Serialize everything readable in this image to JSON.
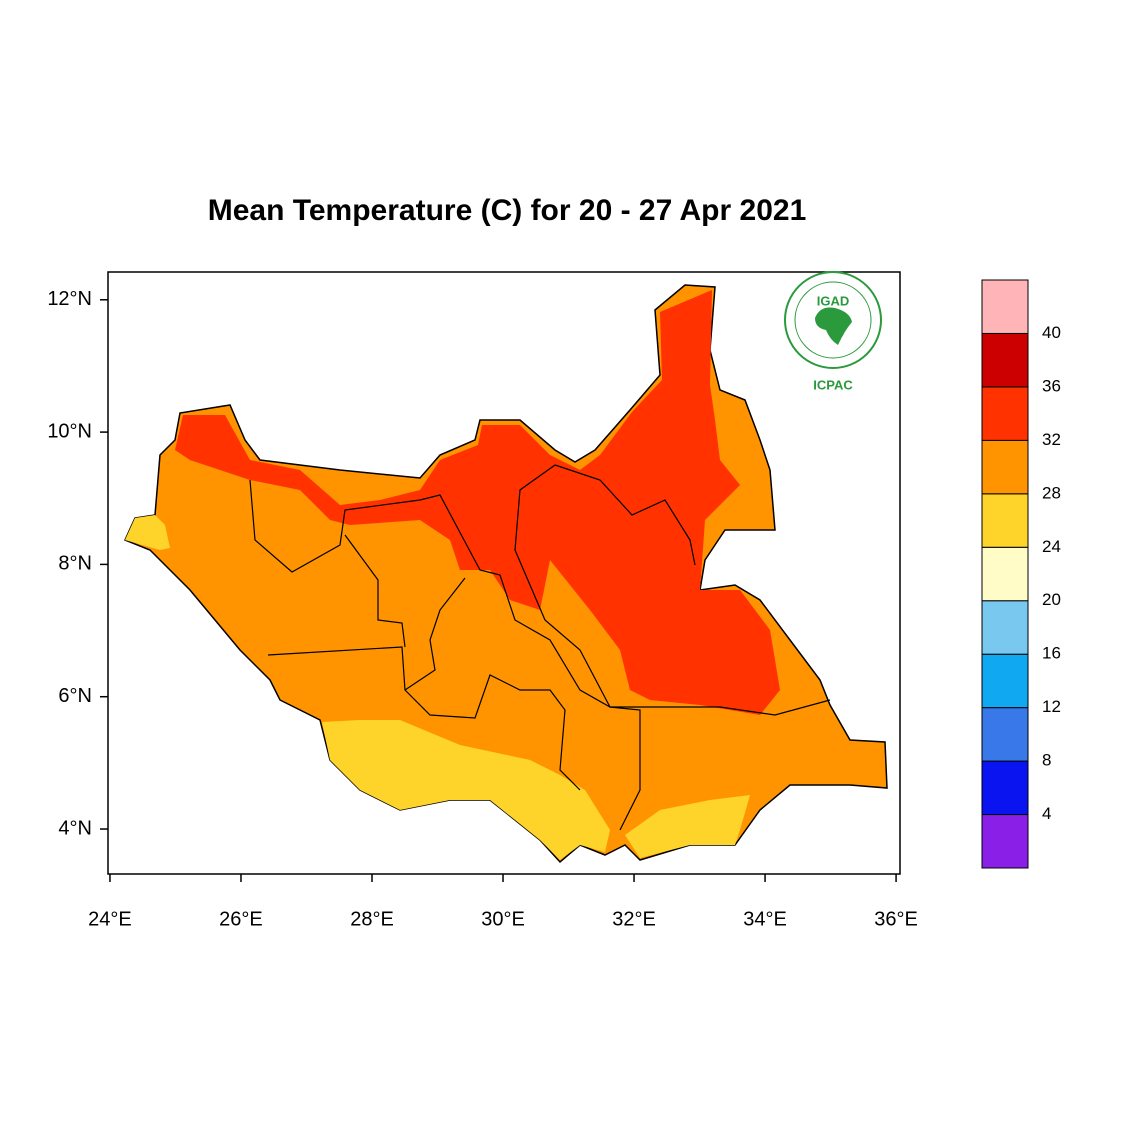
{
  "chart_data": {
    "type": "map",
    "title": "Mean Temperature (C) for 20 - 27 Apr 2021",
    "xlim": [
      23.97,
      36.06
    ],
    "ylim": [
      3.32,
      12.42
    ],
    "xticks": [
      {
        "value": 24,
        "label": "24°E"
      },
      {
        "value": 26,
        "label": "26°E"
      },
      {
        "value": 28,
        "label": "28°E"
      },
      {
        "value": 30,
        "label": "30°E"
      },
      {
        "value": 32,
        "label": "32°E"
      },
      {
        "value": 34,
        "label": "34°E"
      },
      {
        "value": 36,
        "label": "36°E"
      }
    ],
    "yticks": [
      {
        "value": 4,
        "label": "4°N"
      },
      {
        "value": 6,
        "label": "6°N"
      },
      {
        "value": 8,
        "label": "8°N"
      },
      {
        "value": 10,
        "label": "10°N"
      },
      {
        "value": 12,
        "label": "12°N"
      }
    ],
    "colorbar": {
      "levels": [
        4,
        8,
        12,
        16,
        20,
        24,
        28,
        32,
        36,
        40
      ],
      "colors": [
        "#8a20e8",
        "#0a14f0",
        "#3878e8",
        "#10a8f0",
        "#78c8f0",
        "#fffcc8",
        "#ffd42a",
        "#ff9400",
        "#ff3200",
        "#cc0000",
        "#ffb4b8"
      ]
    },
    "logo": {
      "name": "IGAD",
      "caption": "ICPAC"
    }
  }
}
